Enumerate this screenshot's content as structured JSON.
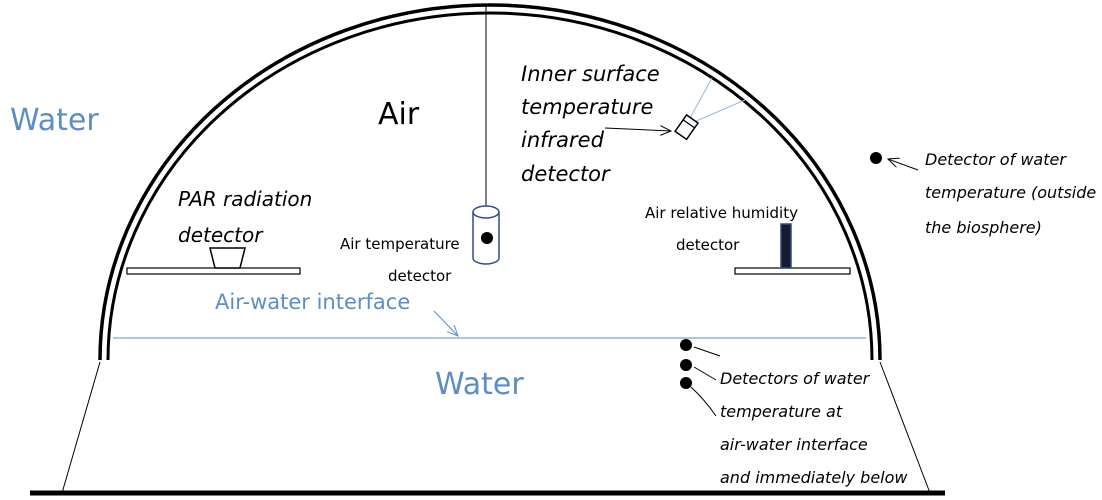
{
  "labels": {
    "water_outside": "Water",
    "air": "Air",
    "ir_detector": [
      "Inner surface",
      "temperature",
      "infrared",
      "detector"
    ],
    "outside_detector": [
      "Detector of water",
      "temperature (outside",
      "the biosphere)"
    ],
    "par_detector": [
      "PAR radiation",
      "detector"
    ],
    "air_temp_detector": [
      "Air temperature",
      "detector"
    ],
    "humidity_detector": [
      "Air relative humidity",
      "detector"
    ],
    "interface": "Air-water interface",
    "water_inside": "Water",
    "interface_detectors": [
      "Detectors of water",
      "temperature at",
      "air-water interface",
      "and immediately below"
    ]
  }
}
